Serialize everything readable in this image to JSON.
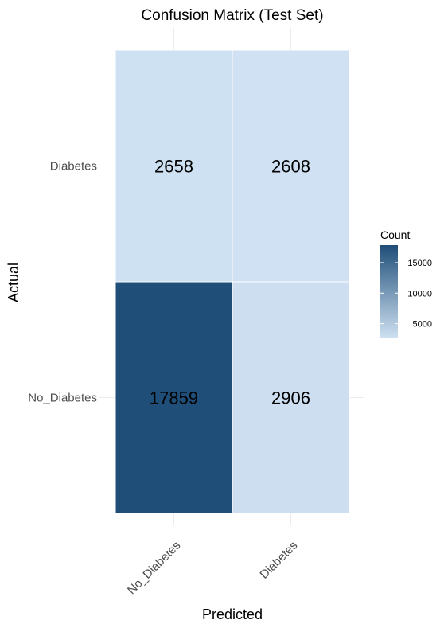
{
  "chart_data": {
    "type": "heatmap",
    "title": "Confusion Matrix (Test Set)",
    "xlabel": "Predicted",
    "ylabel": "Actual",
    "x_categories": [
      "No_Diabetes",
      "Diabetes"
    ],
    "y_categories": [
      "Diabetes",
      "No_Diabetes"
    ],
    "cells": [
      {
        "actual": "Diabetes",
        "predicted": "No_Diabetes",
        "value": 2658
      },
      {
        "actual": "Diabetes",
        "predicted": "Diabetes",
        "value": 2608
      },
      {
        "actual": "No_Diabetes",
        "predicted": "No_Diabetes",
        "value": 17859
      },
      {
        "actual": "No_Diabetes",
        "predicted": "Diabetes",
        "value": 2906
      }
    ],
    "legend": {
      "title": "Count",
      "ticks": [
        5000,
        10000,
        15000
      ],
      "low_color": "#cfe1f2",
      "high_color": "#1f4e79",
      "placement": "right"
    },
    "grid": true
  }
}
